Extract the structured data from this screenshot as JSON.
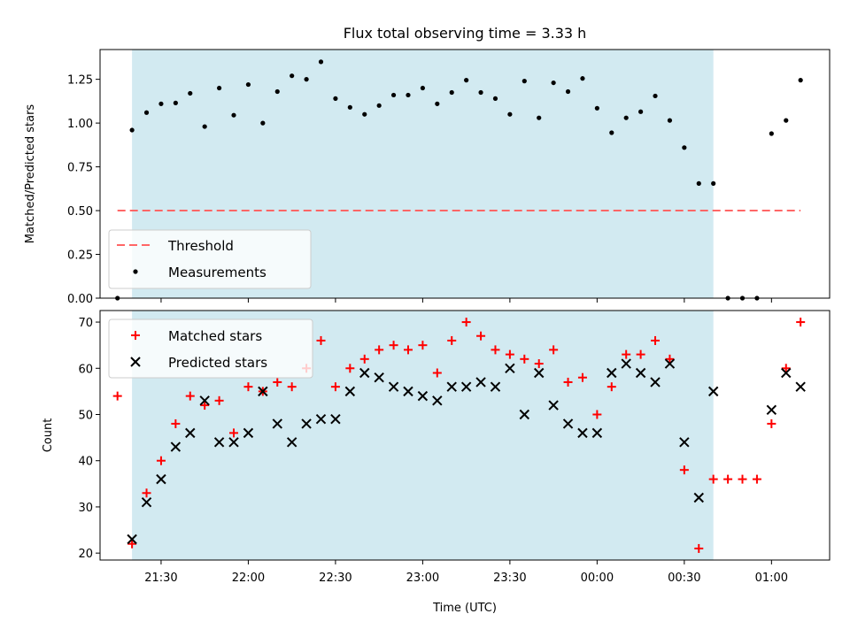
{
  "chart_data": [
    {
      "type": "scatter",
      "title": "Flux total observing time = 3.33 h",
      "xlabel": "",
      "ylabel": "Matched/Predicted stars",
      "ylim": [
        0,
        1.42
      ],
      "yticks": [
        "0.00",
        "0.25",
        "0.50",
        "0.75",
        "1.00",
        "1.25"
      ],
      "shaded_range": [
        "21:20",
        "00:40"
      ],
      "shade_color": "#add8e6",
      "threshold": {
        "name": "Threshold",
        "value": 0.5,
        "x_start": "21:15",
        "x_end": "01:10",
        "color": "#ff6666"
      },
      "series": [
        {
          "name": "Measurements",
          "color": "#000000",
          "marker": "dot",
          "x": [
            "21:15",
            "21:20",
            "21:25",
            "21:30",
            "21:35",
            "21:40",
            "21:45",
            "21:50",
            "21:55",
            "22:00",
            "22:05",
            "22:10",
            "22:15",
            "22:20",
            "22:25",
            "22:30",
            "22:35",
            "22:40",
            "22:45",
            "22:50",
            "22:55",
            "23:00",
            "23:05",
            "23:10",
            "23:15",
            "23:20",
            "23:25",
            "23:30",
            "23:35",
            "23:40",
            "23:45",
            "23:50",
            "23:55",
            "00:00",
            "00:05",
            "00:10",
            "00:15",
            "00:20",
            "00:25",
            "00:30",
            "00:35",
            "00:40",
            "00:45",
            "00:50",
            "00:55",
            "01:00",
            "01:05",
            "01:10"
          ],
          "y": [
            0.0,
            0.96,
            1.06,
            1.11,
            1.115,
            1.17,
            0.98,
            1.2,
            1.045,
            1.22,
            1.0,
            1.18,
            1.27,
            1.25,
            1.35,
            1.14,
            1.09,
            1.05,
            1.1,
            1.16,
            1.16,
            1.2,
            1.11,
            1.175,
            1.245,
            1.175,
            1.14,
            1.05,
            1.24,
            1.03,
            1.23,
            1.18,
            1.255,
            1.085,
            0.945,
            1.03,
            1.065,
            1.155,
            1.015,
            0.86,
            0.655,
            0.655,
            0.0,
            0.0,
            0.0,
            0.94,
            1.015,
            1.245
          ]
        }
      ],
      "legend": {
        "position": "bottom-left",
        "entries": [
          "Threshold",
          "Measurements"
        ]
      }
    },
    {
      "type": "scatter",
      "title": "",
      "xlabel": "Time (UTC)",
      "ylabel": "Count",
      "ylim": [
        18.5,
        72.5
      ],
      "yticks": [
        "20",
        "30",
        "40",
        "50",
        "60",
        "70"
      ],
      "xticks": [
        "21:30",
        "22:00",
        "22:30",
        "23:00",
        "23:30",
        "00:00",
        "00:30",
        "01:00"
      ],
      "xlim": [
        "21:09",
        "01:20"
      ],
      "shaded_range": [
        "21:20",
        "00:40"
      ],
      "shade_color": "#add8e6",
      "series": [
        {
          "name": "Matched stars",
          "color": "#ff0000",
          "marker": "plus",
          "x": [
            "21:15",
            "21:20",
            "21:25",
            "21:30",
            "21:35",
            "21:40",
            "21:45",
            "21:50",
            "21:55",
            "22:00",
            "22:05",
            "22:10",
            "22:15",
            "22:20",
            "22:25",
            "22:30",
            "22:35",
            "22:40",
            "22:45",
            "22:50",
            "22:55",
            "23:00",
            "23:05",
            "23:10",
            "23:15",
            "23:20",
            "23:25",
            "23:30",
            "23:35",
            "23:40",
            "23:45",
            "23:50",
            "23:55",
            "00:00",
            "00:05",
            "00:10",
            "00:15",
            "00:20",
            "00:25",
            "00:30",
            "00:35",
            "00:40",
            "00:45",
            "00:50",
            "00:55",
            "01:00",
            "01:05",
            "01:10"
          ],
          "y": [
            54,
            22,
            33,
            40,
            48,
            54,
            52,
            53,
            46,
            56,
            55,
            57,
            56,
            60,
            66,
            56,
            60,
            62,
            64,
            65,
            64,
            65,
            59,
            66,
            70,
            67,
            64,
            63,
            62,
            61,
            64,
            57,
            58,
            50,
            56,
            63,
            63,
            66,
            62,
            38,
            21,
            36,
            36,
            36,
            36,
            48,
            60,
            70
          ]
        },
        {
          "name": "Predicted stars",
          "color": "#000000",
          "marker": "x",
          "x": [
            "21:20",
            "21:25",
            "21:30",
            "21:35",
            "21:40",
            "21:45",
            "21:50",
            "21:55",
            "22:00",
            "22:05",
            "22:10",
            "22:15",
            "22:20",
            "22:25",
            "22:30",
            "22:35",
            "22:40",
            "22:45",
            "22:50",
            "22:55",
            "23:00",
            "23:05",
            "23:10",
            "23:15",
            "23:20",
            "23:25",
            "23:30",
            "23:35",
            "23:40",
            "23:45",
            "23:50",
            "23:55",
            "00:00",
            "00:05",
            "00:10",
            "00:15",
            "00:20",
            "00:25",
            "00:30",
            "00:35",
            "00:40",
            "01:00",
            "01:05",
            "01:10"
          ],
          "y": [
            23,
            31,
            36,
            43,
            46,
            53,
            44,
            44,
            46,
            55,
            48,
            44,
            48,
            49,
            49,
            55,
            59,
            58,
            56,
            55,
            54,
            53,
            56,
            56,
            57,
            56,
            60,
            50,
            59,
            52,
            48,
            46,
            46,
            59,
            61,
            59,
            57,
            61,
            44,
            32,
            55,
            51,
            59,
            56
          ]
        }
      ],
      "legend": {
        "position": "top-left",
        "entries": [
          "Matched stars",
          "Predicted stars"
        ]
      }
    }
  ]
}
